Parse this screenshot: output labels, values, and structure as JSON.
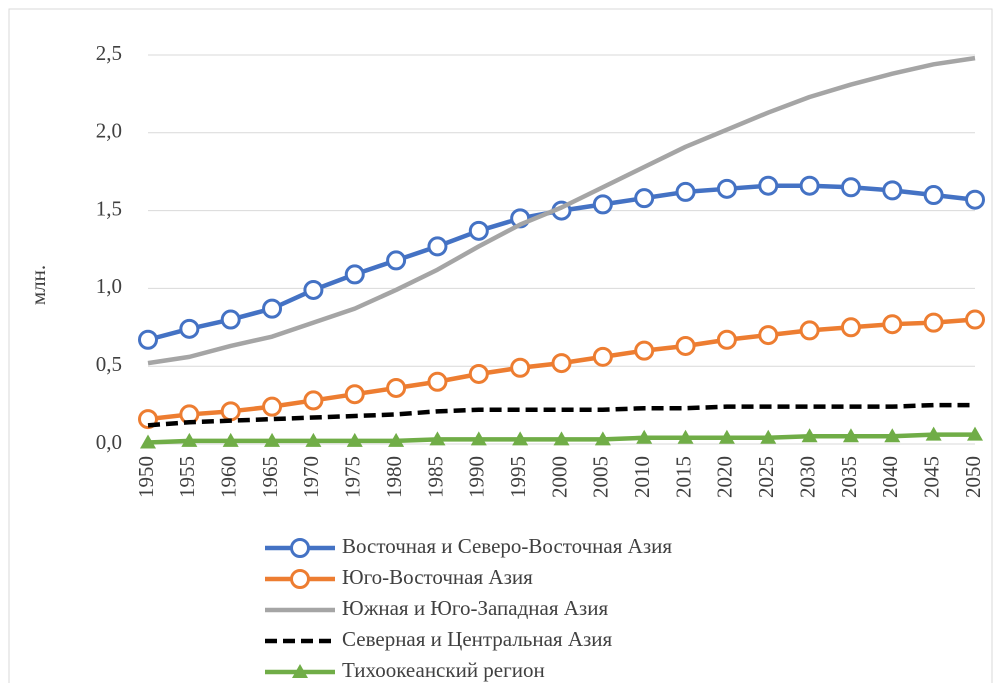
{
  "chart_data": {
    "type": "line",
    "y_label": "млн.",
    "x": [
      1950,
      1955,
      1960,
      1965,
      1970,
      1975,
      1980,
      1985,
      1990,
      1995,
      2000,
      2005,
      2010,
      2015,
      2020,
      2025,
      2030,
      2035,
      2040,
      2045,
      2050
    ],
    "series": [
      {
        "name": "Восточная и Северо-Восточная Азия",
        "color": "#4472c4",
        "marker": "circle",
        "dash": false,
        "values": [
          0.67,
          0.74,
          0.8,
          0.87,
          0.99,
          1.09,
          1.18,
          1.27,
          1.37,
          1.45,
          1.5,
          1.54,
          1.58,
          1.62,
          1.64,
          1.66,
          1.66,
          1.65,
          1.63,
          1.6,
          1.57
        ]
      },
      {
        "name": "Юго-Восточная Азия",
        "color": "#ed7d31",
        "marker": "circle",
        "dash": false,
        "values": [
          0.16,
          0.19,
          0.21,
          0.24,
          0.28,
          0.32,
          0.36,
          0.4,
          0.45,
          0.49,
          0.52,
          0.56,
          0.6,
          0.63,
          0.67,
          0.7,
          0.73,
          0.75,
          0.77,
          0.78,
          0.8
        ]
      },
      {
        "name": "Южная и Юго-Западная Азия",
        "color": "#a5a5a5",
        "marker": "none",
        "dash": false,
        "values": [
          0.52,
          0.56,
          0.63,
          0.69,
          0.78,
          0.87,
          0.99,
          1.12,
          1.27,
          1.41,
          1.52,
          1.65,
          1.78,
          1.91,
          2.02,
          2.13,
          2.23,
          2.31,
          2.38,
          2.44,
          2.48
        ]
      },
      {
        "name": "Северная и Центральная Азия",
        "color": "#000000",
        "marker": "none",
        "dash": true,
        "values": [
          0.12,
          0.14,
          0.15,
          0.16,
          0.17,
          0.18,
          0.19,
          0.21,
          0.22,
          0.22,
          0.22,
          0.22,
          0.23,
          0.23,
          0.24,
          0.24,
          0.24,
          0.24,
          0.24,
          0.25,
          0.25
        ]
      },
      {
        "name": "Тихоокеанский регион",
        "color": "#70ad47",
        "marker": "triangle",
        "dash": false,
        "values": [
          0.01,
          0.02,
          0.02,
          0.02,
          0.02,
          0.02,
          0.02,
          0.03,
          0.03,
          0.03,
          0.03,
          0.03,
          0.04,
          0.04,
          0.04,
          0.04,
          0.05,
          0.05,
          0.05,
          0.06,
          0.06
        ]
      }
    ],
    "ylim": [
      0,
      2.5
    ],
    "yticks": [
      {
        "value": 0,
        "label": "0,0"
      },
      {
        "value": 0.5,
        "label": "0,5"
      },
      {
        "value": 1,
        "label": "1,0"
      },
      {
        "value": 1.5,
        "label": "1,5"
      },
      {
        "value": 2,
        "label": "2,0"
      },
      {
        "value": 2.5,
        "label": "2,5"
      }
    ],
    "grid": true,
    "legend": "bottom"
  }
}
